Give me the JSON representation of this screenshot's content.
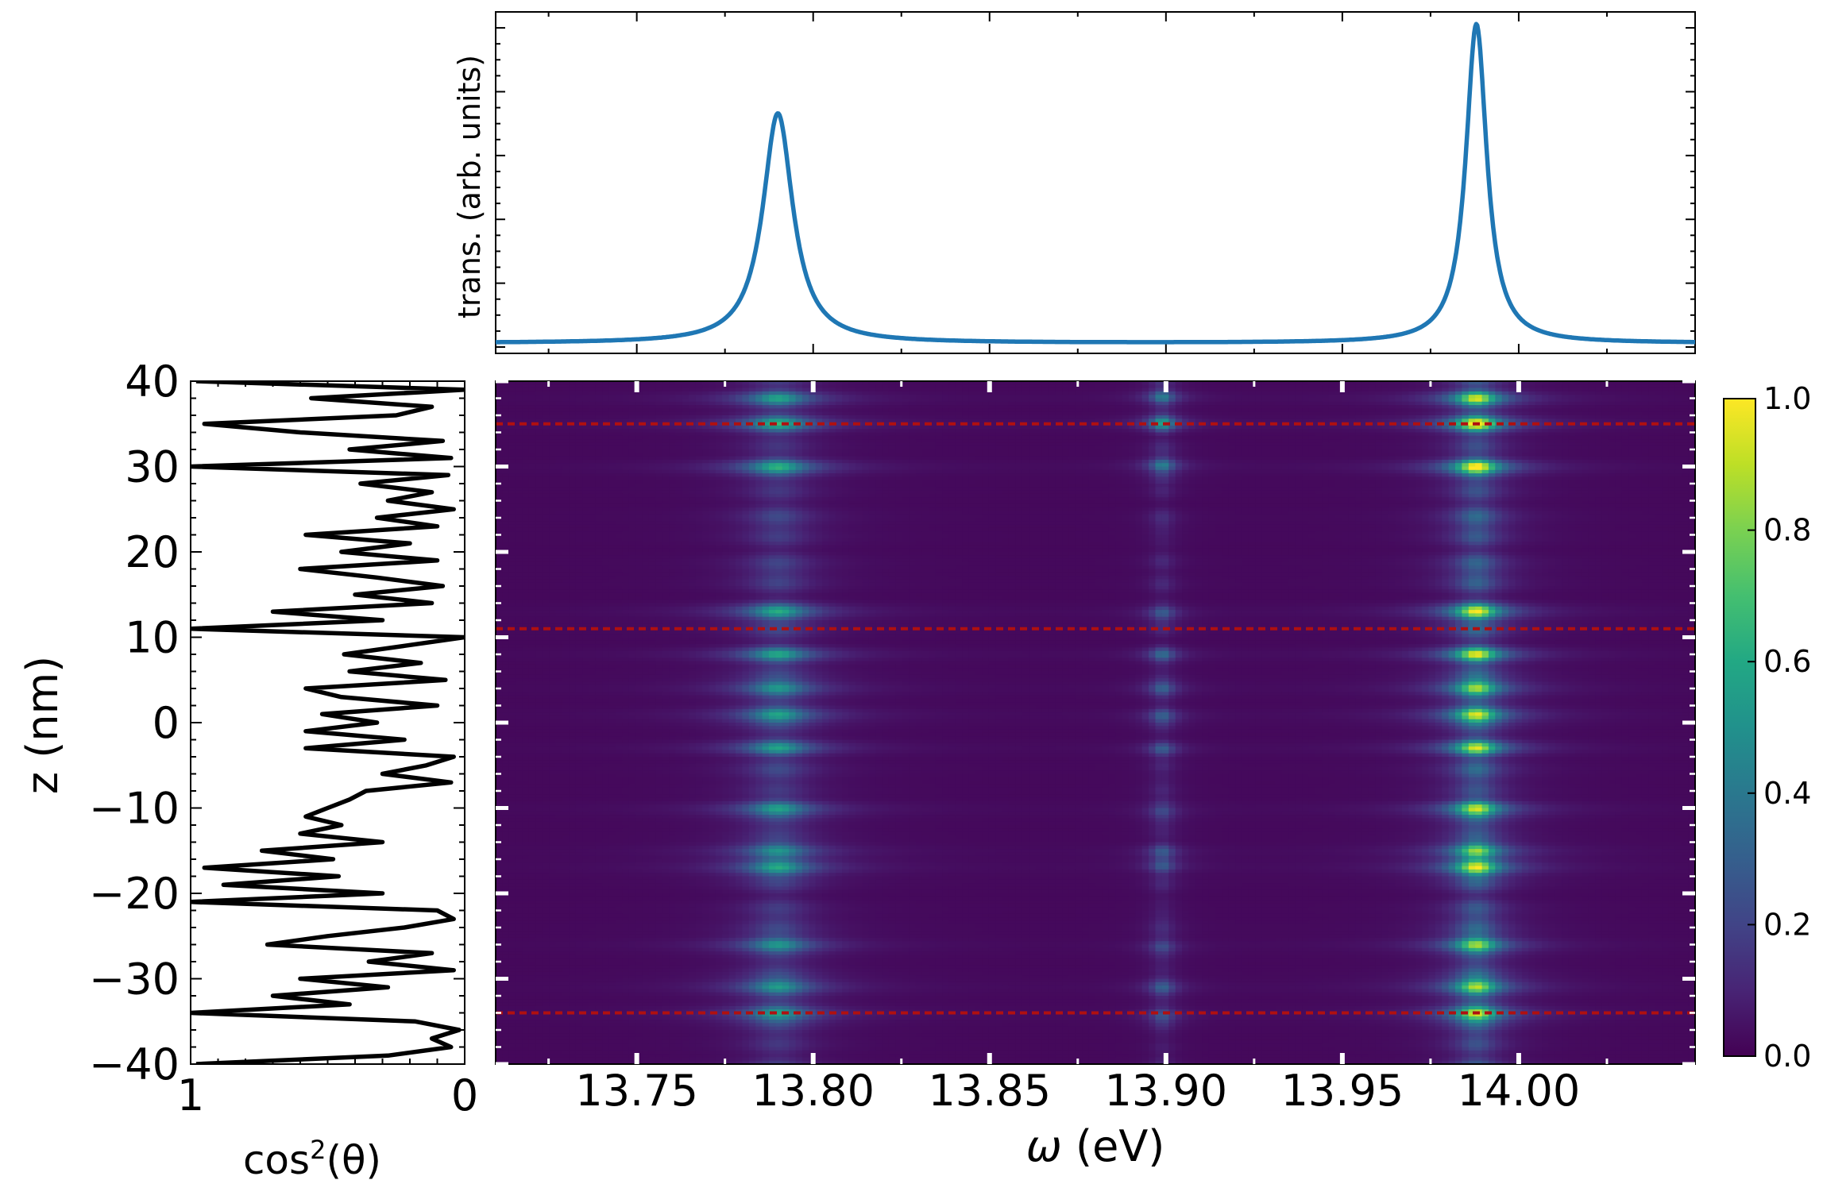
{
  "chart_data": [
    {
      "type": "line",
      "panel": "transmission",
      "ylabel": "trans. (arb. units)",
      "xlim": [
        13.71,
        14.05
      ],
      "ylim": [
        0,
        1.05
      ],
      "show_y_tick_labels": false,
      "series": [
        {
          "color": "#1f77b4",
          "lorentzians": [
            {
              "center": 13.79,
              "height": 0.72,
              "hwhm": 0.0052
            },
            {
              "center": 13.988,
              "height": 1.0,
              "hwhm": 0.0036
            }
          ],
          "baseline": 0.012
        }
      ],
      "x_ticks": [
        13.75,
        13.8,
        13.85,
        13.9,
        13.95,
        14.0
      ]
    },
    {
      "type": "line",
      "panel": "orientation",
      "xlabel": "cos²(θ)",
      "xlabel_parts": {
        "pre": "cos",
        "sup": "2",
        "post": "(θ)"
      },
      "ylabel": "z (nm)",
      "xlim": [
        1,
        0
      ],
      "ylim": [
        -40,
        40
      ],
      "x_ticks": [
        1,
        0
      ],
      "x_tick_labels": [
        "1",
        "0"
      ],
      "y_ticks": [
        40,
        30,
        20,
        10,
        0,
        -10,
        -20,
        -30,
        -40
      ],
      "y_tick_labels": [
        "40",
        "30",
        "20",
        "10",
        "0",
        "−10",
        "−20",
        "−30",
        "−40"
      ],
      "series": [
        {
          "color": "#000000",
          "points": [
            [
              0.98,
              -40
            ],
            [
              0.28,
              -39
            ],
            [
              0.05,
              -38
            ],
            [
              0.12,
              -37
            ],
            [
              0.02,
              -36
            ],
            [
              0.18,
              -35
            ],
            [
              1.0,
              -34
            ],
            [
              0.42,
              -33
            ],
            [
              0.7,
              -32
            ],
            [
              0.28,
              -31
            ],
            [
              0.6,
              -30
            ],
            [
              0.04,
              -29
            ],
            [
              0.35,
              -28
            ],
            [
              0.12,
              -27
            ],
            [
              0.72,
              -26
            ],
            [
              0.5,
              -25
            ],
            [
              0.22,
              -24
            ],
            [
              0.04,
              -23
            ],
            [
              0.1,
              -22
            ],
            [
              1.0,
              -21
            ],
            [
              0.3,
              -20
            ],
            [
              0.88,
              -19
            ],
            [
              0.46,
              -18
            ],
            [
              0.95,
              -17
            ],
            [
              0.48,
              -16
            ],
            [
              0.74,
              -15
            ],
            [
              0.3,
              -14
            ],
            [
              0.6,
              -13
            ],
            [
              0.45,
              -12
            ],
            [
              0.58,
              -11
            ],
            [
              0.5,
              -10
            ],
            [
              0.42,
              -9
            ],
            [
              0.36,
              -8
            ],
            [
              0.05,
              -7
            ],
            [
              0.3,
              -6
            ],
            [
              0.14,
              -5
            ],
            [
              0.04,
              -4
            ],
            [
              0.58,
              -3
            ],
            [
              0.22,
              -2
            ],
            [
              0.58,
              -1
            ],
            [
              0.32,
              0
            ],
            [
              0.52,
              1
            ],
            [
              0.1,
              2
            ],
            [
              0.45,
              3
            ],
            [
              0.58,
              4
            ],
            [
              0.07,
              5
            ],
            [
              0.42,
              6
            ],
            [
              0.16,
              7
            ],
            [
              0.44,
              8
            ],
            [
              0.22,
              9
            ],
            [
              0.0,
              10
            ],
            [
              1.0,
              11
            ],
            [
              0.3,
              12
            ],
            [
              0.7,
              13
            ],
            [
              0.12,
              14
            ],
            [
              0.4,
              15
            ],
            [
              0.08,
              16
            ],
            [
              0.32,
              17
            ],
            [
              0.6,
              18
            ],
            [
              0.1,
              19
            ],
            [
              0.45,
              20
            ],
            [
              0.2,
              21
            ],
            [
              0.58,
              22
            ],
            [
              0.1,
              23
            ],
            [
              0.32,
              24
            ],
            [
              0.04,
              25
            ],
            [
              0.28,
              26
            ],
            [
              0.12,
              27
            ],
            [
              0.38,
              28
            ],
            [
              0.06,
              29
            ],
            [
              1.0,
              30
            ],
            [
              0.05,
              31
            ],
            [
              0.42,
              32
            ],
            [
              0.08,
              33
            ],
            [
              0.6,
              34
            ],
            [
              0.95,
              35
            ],
            [
              0.25,
              36
            ],
            [
              0.12,
              37
            ],
            [
              0.56,
              38
            ],
            [
              0.0,
              39
            ],
            [
              0.98,
              40
            ]
          ]
        }
      ]
    },
    {
      "type": "heatmap",
      "panel": "field-map",
      "xlabel": "ω (eV)",
      "xlabel_parts": {
        "symbol": "ω",
        "unit": " (eV)"
      },
      "xlim": [
        13.71,
        14.05
      ],
      "ylim": [
        -40,
        40
      ],
      "x_ticks": [
        13.75,
        13.8,
        13.85,
        13.9,
        13.95,
        14.0
      ],
      "x_tick_labels": [
        "13.75",
        "13.80",
        "13.85",
        "13.90",
        "13.95",
        "14.00"
      ],
      "y_ticks": [
        40,
        30,
        20,
        10,
        0,
        -10,
        -20,
        -30,
        -40
      ],
      "colormap": "viridis",
      "clim": [
        0,
        1
      ],
      "resonances": [
        {
          "center": 13.79,
          "hwhm": 0.0075,
          "weight": 0.6
        },
        {
          "center": 13.988,
          "hwhm": 0.0055,
          "weight": 1.0
        },
        {
          "center": 13.899,
          "hwhm": 0.003,
          "weight": 0.35
        }
      ],
      "hotspots_z": [
        -34,
        -31,
        -26,
        -17,
        -15,
        -10,
        -3,
        1,
        4,
        8,
        13,
        30,
        35,
        38
      ],
      "reference_lines_z": [
        35,
        11,
        -34
      ],
      "reference_line_color": "#b01010"
    },
    {
      "type": "colorbar",
      "panel": "colorbar",
      "clim": [
        0,
        1
      ],
      "ticks": [
        0.0,
        0.2,
        0.4,
        0.6,
        0.8,
        1.0
      ],
      "tick_labels": [
        "0.0",
        "0.2",
        "0.4",
        "0.6",
        "0.8",
        "1.0"
      ],
      "colormap": "viridis"
    }
  ]
}
